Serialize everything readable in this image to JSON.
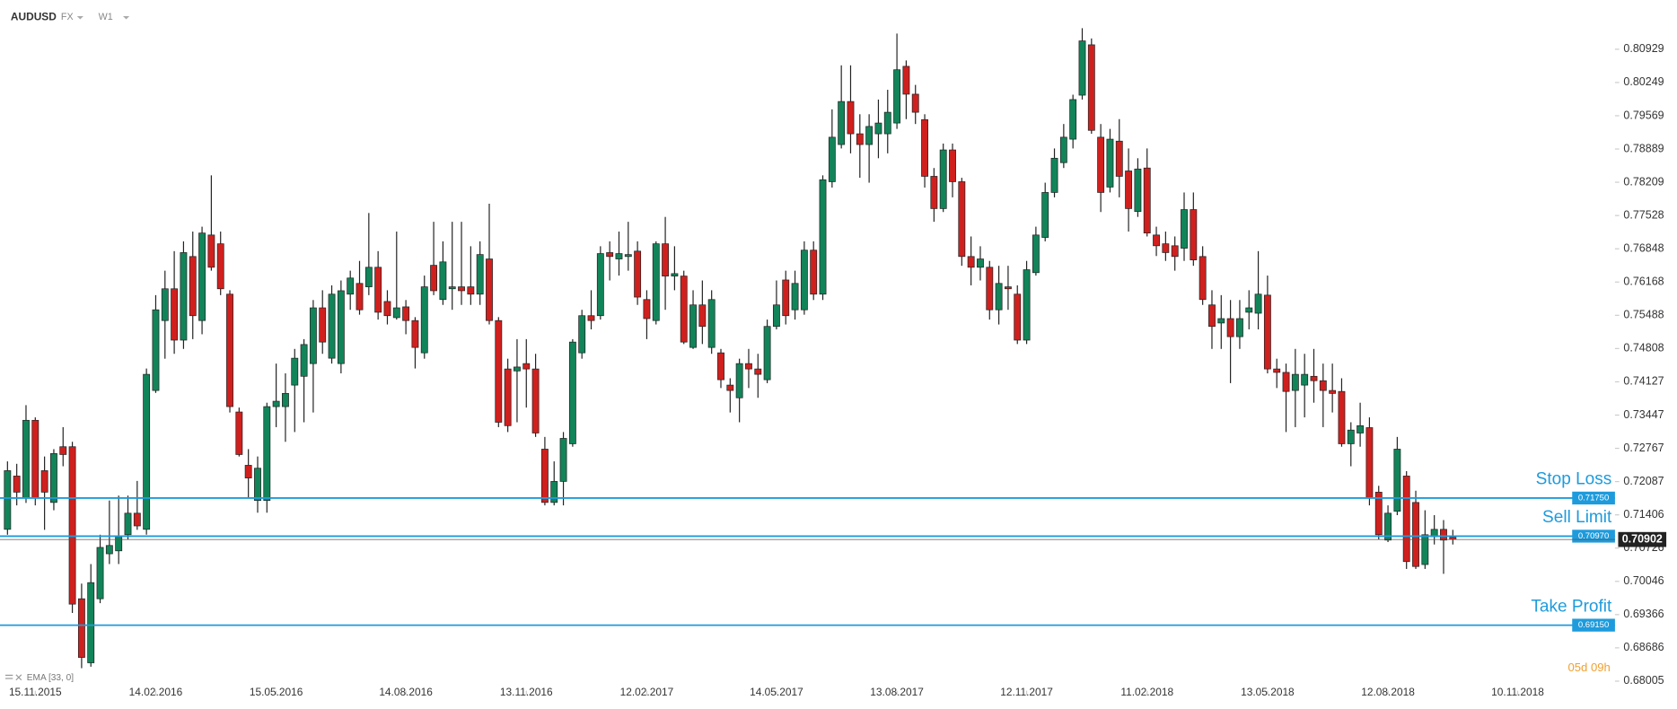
{
  "chart_data": {
    "type": "candlestick",
    "symbol": "AUDUSD",
    "market": "FX",
    "interval": "W1",
    "indicator": "EMA [33, 0]",
    "countdown": "05d 09h",
    "up_color": "#12845a",
    "down_color": "#d0201e",
    "level_color": "#1e9bdc",
    "ylim": [
      0.67721,
      0.81935
    ],
    "yticks": [
      0.68005,
      0.68686,
      0.69366,
      0.70046,
      0.70726,
      0.71406,
      0.72087,
      0.72767,
      0.73447,
      0.74127,
      0.74808,
      0.75488,
      0.76168,
      0.76848,
      0.77528,
      0.78209,
      0.78889,
      0.79569,
      0.80249,
      0.80929
    ],
    "xlim": [
      0,
      173.5
    ],
    "xticks": [
      {
        "value": 3,
        "label": "15.11.2015"
      },
      {
        "value": 16,
        "label": "14.02.2016"
      },
      {
        "value": 29,
        "label": "15.05.2016"
      },
      {
        "value": 43,
        "label": "14.08.2016"
      },
      {
        "value": 56,
        "label": "13.11.2016"
      },
      {
        "value": 69,
        "label": "12.02.2017"
      },
      {
        "value": 83,
        "label": "14.05.2017"
      },
      {
        "value": 96,
        "label": "13.08.2017"
      },
      {
        "value": 110,
        "label": "12.11.2017"
      },
      {
        "value": 123,
        "label": "11.02.2018"
      },
      {
        "value": 136,
        "label": "13.05.2018"
      },
      {
        "value": 149,
        "label": "12.08.2018"
      },
      {
        "value": 163,
        "label": "10.11.2018"
      }
    ],
    "levels": [
      {
        "name": "Stop Loss",
        "value": 0.7175,
        "label": "0.71750"
      },
      {
        "name": "Sell Limit",
        "value": 0.7097,
        "label": "0.70970"
      },
      {
        "name": "Take Profit",
        "value": 0.6915,
        "label": "0.69150"
      }
    ],
    "last_price": {
      "value": 0.70902,
      "label": "0.70902"
    },
    "open": [
      0.7111,
      0.722,
      0.7176,
      0.7334,
      0.7231,
      0.7166,
      0.728,
      0.728,
      0.6969,
      0.6838,
      0.6969,
      0.7061,
      0.7067,
      0.71,
      0.7144,
      0.7111,
      0.7395,
      0.7538,
      0.7603,
      0.7498,
      0.7669,
      0.7538,
      0.7713,
      0.7695,
      0.7592,
      0.7351,
      0.7242,
      0.717,
      0.717,
      0.7362,
      0.7362,
      0.7406,
      0.7424,
      0.745,
      0.7564,
      0.7461,
      0.745,
      0.7592,
      0.7614,
      0.7607,
      0.7647,
      0.7577,
      0.7544,
      0.7566,
      0.7538,
      0.7472,
      0.7651,
      0.7581,
      0.7603,
      0.7607,
      0.7607,
      0.7592,
      0.7664,
      0.7538,
      0.7439,
      0.7435,
      0.745,
      0.7439,
      0.7275,
      0.7166,
      0.7209,
      0.7286,
      0.7472,
      0.7548,
      0.7548,
      0.7677,
      0.7664,
      0.7669,
      0.768,
      0.7581,
      0.7538,
      0.7695,
      0.7629,
      0.7629,
      0.7483,
      0.757,
      0.7483,
      0.7472,
      0.7406,
      0.738,
      0.745,
      0.7439,
      0.7417,
      0.7526,
      0.7621,
      0.756,
      0.756,
      0.7682,
      0.7592,
      0.7822,
      0.7898,
      0.7986,
      0.792,
      0.7898,
      0.792,
      0.792,
      0.7942,
      0.8058,
      0.8001,
      0.7949,
      0.7833,
      0.7767,
      0.7887,
      0.7822,
      0.7669,
      0.7647,
      0.7647,
      0.756,
      0.7607,
      0.7592,
      0.7498,
      0.7636,
      0.7708,
      0.78,
      0.7861,
      0.7909,
      0.7999,
      0.8102,
      0.7913,
      0.7811,
      0.7905,
      0.7844,
      0.7761,
      0.785,
      0.7713,
      0.7695,
      0.7691,
      0.7686,
      0.7765,
      0.7669,
      0.757,
      0.7533,
      0.7542,
      0.7505,
      0.7555,
      0.7553,
      0.759,
      0.7439,
      0.7432,
      0.7395,
      0.7406,
      0.7424,
      0.7415,
      0.7395,
      0.7393,
      0.7286,
      0.7308,
      0.7319,
      0.7187,
      0.7089,
      0.7148,
      0.722,
      0.7166,
      0.7039,
      0.7096,
      0.7111,
      0.7095
    ],
    "high": [
      0.725,
      0.7245,
      0.7365,
      0.734,
      0.726,
      0.7275,
      0.732,
      0.729,
      0.7,
      0.704,
      0.71,
      0.717,
      0.718,
      0.718,
      0.721,
      0.744,
      0.759,
      0.764,
      0.768,
      0.77,
      0.772,
      0.773,
      0.7835,
      0.772,
      0.76,
      0.736,
      0.7275,
      0.726,
      0.737,
      0.745,
      0.743,
      0.748,
      0.75,
      0.758,
      0.76,
      0.761,
      0.762,
      0.764,
      0.766,
      0.7758,
      0.768,
      0.76,
      0.772,
      0.758,
      0.7545,
      0.763,
      0.774,
      0.77,
      0.774,
      0.774,
      0.769,
      0.77,
      0.7777,
      0.7545,
      0.746,
      0.75,
      0.75,
      0.747,
      0.73,
      0.725,
      0.731,
      0.75,
      0.756,
      0.76,
      0.769,
      0.77,
      0.772,
      0.774,
      0.77,
      0.76,
      0.77,
      0.775,
      0.769,
      0.764,
      0.76,
      0.762,
      0.76,
      0.748,
      0.742,
      0.746,
      0.748,
      0.747,
      0.754,
      0.762,
      0.764,
      0.764,
      0.77,
      0.77,
      0.7835,
      0.797,
      0.806,
      0.806,
      0.796,
      0.796,
      0.799,
      0.801,
      0.8125,
      0.807,
      0.802,
      0.796,
      0.785,
      0.79,
      0.79,
      0.783,
      0.771,
      0.769,
      0.766,
      0.765,
      0.765,
      0.761,
      0.766,
      0.773,
      0.782,
      0.789,
      0.794,
      0.8,
      0.8136,
      0.8115,
      0.794,
      0.793,
      0.795,
      0.789,
      0.787,
      0.789,
      0.773,
      0.772,
      0.771,
      0.78,
      0.78,
      0.769,
      0.76,
      0.759,
      0.758,
      0.758,
      0.76,
      0.768,
      0.763,
      0.746,
      0.745,
      0.748,
      0.747,
      0.748,
      0.745,
      0.745,
      0.742,
      0.733,
      0.737,
      0.734,
      0.72,
      0.716,
      0.73,
      0.723,
      0.719,
      0.715,
      0.714,
      0.713,
      0.711
    ],
    "low": [
      0.71,
      0.716,
      0.7165,
      0.716,
      0.711,
      0.715,
      0.724,
      0.694,
      0.6827,
      0.683,
      0.696,
      0.704,
      0.704,
      0.709,
      0.711,
      0.71,
      0.739,
      0.746,
      0.747,
      0.748,
      0.75,
      0.751,
      0.764,
      0.759,
      0.735,
      0.726,
      0.7175,
      0.7145,
      0.7145,
      0.732,
      0.729,
      0.731,
      0.733,
      0.735,
      0.747,
      0.745,
      0.743,
      0.756,
      0.755,
      0.759,
      0.754,
      0.753,
      0.754,
      0.751,
      0.744,
      0.746,
      0.759,
      0.757,
      0.756,
      0.757,
      0.757,
      0.757,
      0.753,
      0.732,
      0.731,
      0.733,
      0.736,
      0.73,
      0.716,
      0.716,
      0.716,
      0.728,
      0.746,
      0.752,
      0.754,
      0.762,
      0.763,
      0.764,
      0.757,
      0.75,
      0.753,
      0.756,
      0.76,
      0.749,
      0.748,
      0.749,
      0.747,
      0.74,
      0.735,
      0.733,
      0.74,
      0.738,
      0.741,
      0.752,
      0.753,
      0.754,
      0.755,
      0.758,
      0.758,
      0.781,
      0.789,
      0.788,
      0.783,
      0.782,
      0.787,
      0.788,
      0.793,
      0.795,
      0.794,
      0.781,
      0.774,
      0.776,
      0.779,
      0.765,
      0.761,
      0.762,
      0.754,
      0.753,
      0.756,
      0.749,
      0.749,
      0.763,
      0.77,
      0.779,
      0.785,
      0.789,
      0.799,
      0.792,
      0.776,
      0.78,
      0.779,
      0.772,
      0.775,
      0.771,
      0.767,
      0.766,
      0.764,
      0.766,
      0.765,
      0.757,
      0.748,
      0.748,
      0.741,
      0.748,
      0.752,
      0.752,
      0.743,
      0.74,
      0.731,
      0.732,
      0.734,
      0.737,
      0.732,
      0.735,
      0.728,
      0.724,
      0.728,
      0.716,
      0.709,
      0.7085,
      0.714,
      0.703,
      0.703,
      0.703,
      0.708,
      0.702,
      0.708
    ],
    "close": [
      0.7231,
      0.7187,
      0.7334,
      0.7176,
      0.7187,
      0.7266,
      0.7264,
      0.6958,
      0.6849,
      0.7002,
      0.7074,
      0.7078,
      0.7096,
      0.7144,
      0.7118,
      0.7428,
      0.756,
      0.7603,
      0.7498,
      0.7677,
      0.7548,
      0.7717,
      0.7647,
      0.7603,
      0.7362,
      0.7264,
      0.7216,
      0.7236,
      0.7362,
      0.7373,
      0.7389,
      0.7461,
      0.7489,
      0.7564,
      0.7494,
      0.7592,
      0.7599,
      0.7625,
      0.756,
      0.7647,
      0.7555,
      0.7548,
      0.7564,
      0.7538,
      0.7483,
      0.7607,
      0.7599,
      0.7658,
      0.7607,
      0.7599,
      0.7592,
      0.7673,
      0.7538,
      0.733,
      0.7323,
      0.7443,
      0.7439,
      0.7308,
      0.7166,
      0.7209,
      0.7297,
      0.7494,
      0.7548,
      0.7538,
      0.7675,
      0.7669,
      0.7675,
      0.7673,
      0.7586,
      0.7542,
      0.7695,
      0.7629,
      0.7634,
      0.7494,
      0.757,
      0.7526,
      0.7581,
      0.7417,
      0.7395,
      0.745,
      0.7439,
      0.7428,
      0.7526,
      0.757,
      0.7548,
      0.7614,
      0.7682,
      0.7592,
      0.7826,
      0.7913,
      0.7986,
      0.792,
      0.7898,
      0.7935,
      0.7942,
      0.7964,
      0.8051,
      0.8001,
      0.7964,
      0.7833,
      0.7767,
      0.7887,
      0.7822,
      0.7669,
      0.7647,
      0.7664,
      0.756,
      0.7614,
      0.7603,
      0.7498,
      0.7642,
      0.7713,
      0.78,
      0.787,
      0.7913,
      0.799,
      0.811,
      0.7927,
      0.78,
      0.7909,
      0.7833,
      0.7767,
      0.7848,
      0.7717,
      0.7691,
      0.7677,
      0.7669,
      0.7765,
      0.7662,
      0.7581,
      0.7526,
      0.7542,
      0.7505,
      0.7542,
      0.7564,
      0.7592,
      0.7439,
      0.7432,
      0.7393,
      0.7428,
      0.7428,
      0.7415,
      0.7395,
      0.7389,
      0.7286,
      0.7314,
      0.7323,
      0.7176,
      0.71,
      0.7144,
      0.7275,
      0.7045,
      0.7035,
      0.71,
      0.7111,
      0.7089,
      0.70902
    ]
  }
}
